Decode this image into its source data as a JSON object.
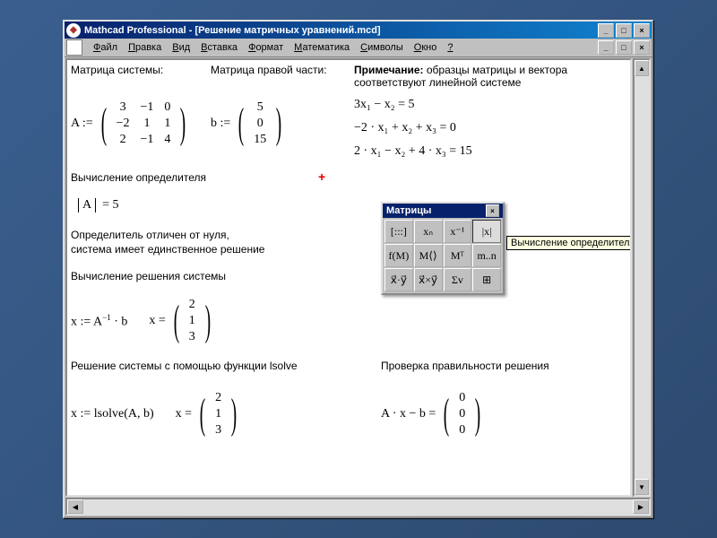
{
  "window": {
    "title": "Mathcad Professional - [Решение матричных уравнений.mcd]",
    "buttons": {
      "min": "_",
      "max": "□",
      "close": "×"
    }
  },
  "menu": {
    "items": [
      "Файл",
      "Правка",
      "Вид",
      "Вставка",
      "Формат",
      "Математика",
      "Символы",
      "Окно",
      "?"
    ]
  },
  "labels": {
    "matrixA_title": "Матрица системы:",
    "matrixB_title": "Матрица правой части:",
    "note_title": "Примечание:",
    "note_body": "образцы матрицы и вектора соответствуют линейной системе",
    "det_title": "Вычисление определителя",
    "det_result": "|A|  = 5",
    "det_note1": "Определитель отличен от нуля,",
    "det_note2": "система имеет единственное решение",
    "solve_title": "Вычисление решения системы",
    "lsolve_title": "Решение системы с помощью функции lsolve",
    "check_title": "Проверка правильности решения",
    "A_assign": "A :=",
    "b_assign": "b :=",
    "x_assign_inv": "x := A⁻¹ · b",
    "x_eq": "x =",
    "x_assign_lsolve": "x := lsolve(A, b)",
    "check_expr": "A · x − b ="
  },
  "equations": {
    "eq1": "3x₁ − x₂ = 5",
    "eq2": "−2 · x₁ + x₂ + x₃ = 0",
    "eq3": "2 · x₁ − x₂ + 4 · x₃ = 15"
  },
  "matrices": {
    "A": [
      [
        "3",
        "−1",
        "0"
      ],
      [
        "−2",
        "1",
        "1"
      ],
      [
        "2",
        "−1",
        "4"
      ]
    ],
    "b": [
      [
        "5"
      ],
      [
        "0"
      ],
      [
        "15"
      ]
    ],
    "x": [
      [
        "2"
      ],
      [
        "1"
      ],
      [
        "3"
      ]
    ],
    "zero": [
      [
        "0"
      ],
      [
        "0"
      ],
      [
        "0"
      ]
    ]
  },
  "palette": {
    "title": "Матрицы",
    "tooltip": "Вычисление определителя",
    "cells": [
      {
        "label": "[:::]",
        "name": "matrix-create"
      },
      {
        "label": "xₙ",
        "name": "subscript"
      },
      {
        "label": "x⁻¹",
        "name": "inverse"
      },
      {
        "label": "|x|",
        "name": "determinant",
        "active": true
      },
      {
        "label": "f(M)",
        "name": "vectorize"
      },
      {
        "label": "M⟨⟩",
        "name": "column"
      },
      {
        "label": "Mᵀ",
        "name": "transpose"
      },
      {
        "label": "m..n",
        "name": "range"
      },
      {
        "label": "x⃗·y⃗",
        "name": "dot-product"
      },
      {
        "label": "x⃗×y⃗",
        "name": "cross-product"
      },
      {
        "label": "Σv",
        "name": "sum-vector"
      },
      {
        "label": "⊞",
        "name": "picture"
      }
    ]
  },
  "colors": {
    "titlebar_start": "#08216b",
    "titlebar_end": "#1084d0",
    "ui_face": "#c0c0c0",
    "tooltip_bg": "#ffffe1",
    "cursor_red": "#d00000"
  }
}
